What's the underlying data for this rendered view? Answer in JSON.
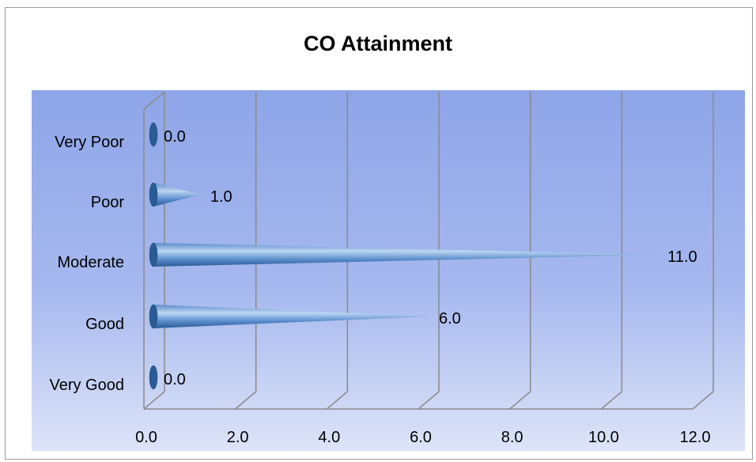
{
  "chart_data": {
    "type": "bar",
    "orientation": "horizontal",
    "style": "3d-cone",
    "title": "CO Attainment",
    "categories": [
      "Very Poor",
      "Poor",
      "Moderate",
      "Good",
      "Very Good"
    ],
    "values": [
      0.0,
      1.0,
      11.0,
      6.0,
      0.0
    ],
    "data_labels": [
      "0.0",
      "1.0",
      "11.0",
      "6.0",
      "0.0"
    ],
    "x_ticks": [
      "0.0",
      "2.0",
      "4.0",
      "6.0",
      "8.0",
      "10.0",
      "12.0"
    ],
    "xlim": [
      0,
      12
    ],
    "grid": true,
    "legend": "none",
    "colors": {
      "plot_top": "#8ea5e8",
      "plot_mid": "#a6b8ee",
      "plot_bottom": "#dde4f8",
      "cone_dark": "#2a5b94",
      "cone_mid": "#5a8ccb",
      "cone_light": "#bcd6f2",
      "grid": "#8a8a8a"
    }
  }
}
